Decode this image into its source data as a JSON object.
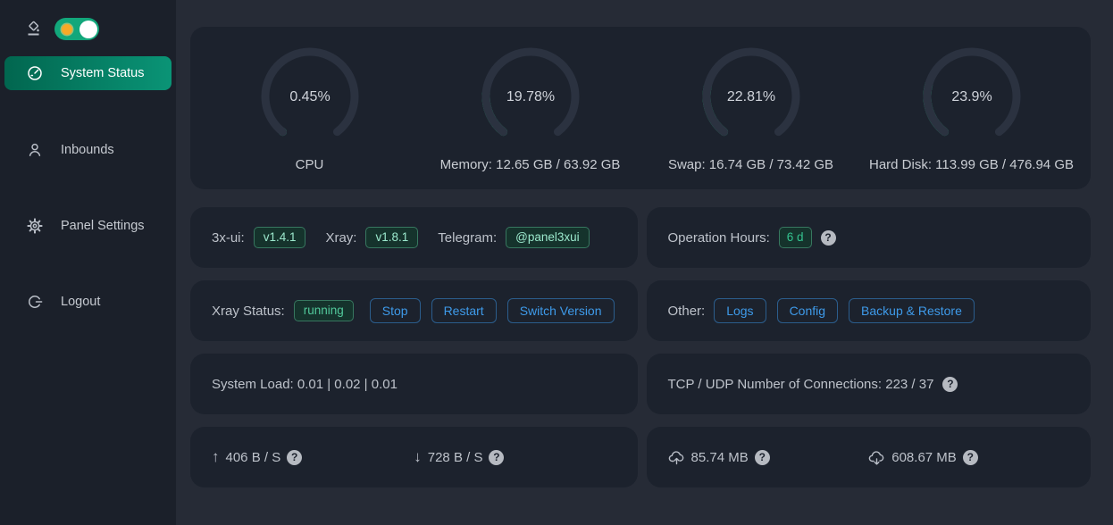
{
  "sidebar": {
    "theme_toggle": {
      "name": "dark-light-theme-switch",
      "state": "on"
    },
    "items": [
      {
        "label": "System Status",
        "icon": "dashboard-icon",
        "active": true
      },
      {
        "label": "Inbounds",
        "icon": "user-icon",
        "active": false
      },
      {
        "label": "Panel Settings",
        "icon": "gear-icon",
        "active": false
      },
      {
        "label": "Logout",
        "icon": "logout-icon",
        "active": false
      }
    ]
  },
  "gauges": [
    {
      "percent": 0.45,
      "percent_label": "0.45%",
      "label": "CPU"
    },
    {
      "percent": 19.78,
      "percent_label": "19.78%",
      "label": "Memory: 12.65 GB / 63.92 GB"
    },
    {
      "percent": 22.81,
      "percent_label": "22.81%",
      "label": "Swap: 16.74 GB / 73.42 GB"
    },
    {
      "percent": 23.9,
      "percent_label": "23.9%",
      "label": "Hard Disk: 113.99 GB / 476.94 GB"
    }
  ],
  "version_card": {
    "xui_label": "3x-ui:",
    "xui_version": "v1.4.1",
    "xray_label": "Xray:",
    "xray_version": "v1.8.1",
    "telegram_label": "Telegram:",
    "telegram_handle": "@panel3xui"
  },
  "operation_card": {
    "label": "Operation Hours:",
    "value": "6 d"
  },
  "xray_status_card": {
    "label": "Xray Status:",
    "status": "running",
    "buttons": [
      "Stop",
      "Restart",
      "Switch Version"
    ]
  },
  "other_card": {
    "label": "Other:",
    "buttons": [
      "Logs",
      "Config",
      "Backup & Restore"
    ]
  },
  "system_load_card": {
    "text": "System Load: 0.01 | 0.02 | 0.01"
  },
  "connections_card": {
    "text": "TCP / UDP Number of Connections: 223 / 37"
  },
  "speed_card": {
    "upload": "406 B / S",
    "download": "728 B / S"
  },
  "traffic_card": {
    "upload_total": "85.74 MB",
    "download_total": "608.67 MB"
  },
  "help_icon_glyph": "?",
  "colors": {
    "sidebar_bg": "#1b202a",
    "main_bg": "#262b36",
    "card_bg": "#1c222d",
    "accent_green": "#0a9476",
    "gauge_green": "#24b27a",
    "gauge_track": "#2b3240",
    "tag_green_text": "#9be8cc",
    "button_blue": "#3e9ae9",
    "switch_green": "#12a77b",
    "switch_sun_orange": "#f7a927"
  }
}
